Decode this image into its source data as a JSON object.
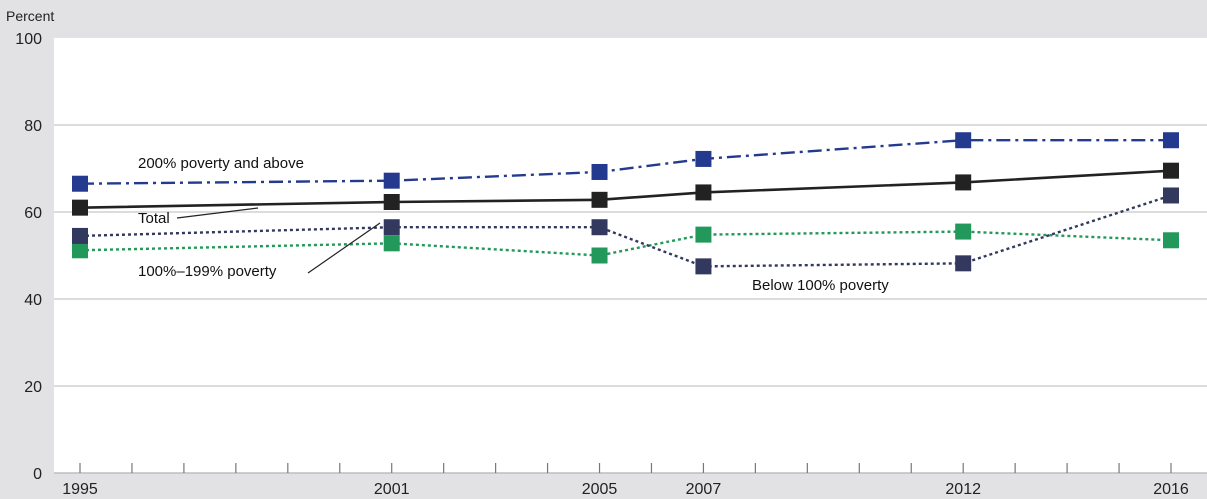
{
  "chart_data": {
    "type": "line",
    "title": "",
    "xlabel": "",
    "ylabel": "Percent",
    "ylim": [
      0,
      100
    ],
    "xlim": [
      1995,
      2016
    ],
    "y_ticks": [
      0,
      20,
      40,
      60,
      80,
      100
    ],
    "x_tick_labels": [
      1995,
      2001,
      2005,
      2007,
      2012,
      2016
    ],
    "x_minor_ticks": [
      1996,
      1997,
      1998,
      1999,
      2000,
      2002,
      2003,
      2004,
      2006,
      2008,
      2009,
      2010,
      2011,
      2013,
      2014,
      2015
    ],
    "grid": "horizontal",
    "x": [
      1995,
      2001,
      2005,
      2007,
      2012,
      2016
    ],
    "series": [
      {
        "name": "200% poverty and above",
        "values": [
          66.5,
          67.2,
          69.2,
          72.2,
          76.5,
          76.5
        ],
        "color": "#243a8f",
        "dash": "dash-dot"
      },
      {
        "name": "Total",
        "values": [
          61.0,
          62.3,
          62.8,
          64.5,
          66.8,
          69.5
        ],
        "color": "#222222",
        "dash": "solid"
      },
      {
        "name": "100%–199% poverty",
        "values": [
          51.2,
          52.8,
          50.0,
          54.8,
          55.5,
          53.5
        ],
        "color": "#22995a",
        "dash": "dotted"
      },
      {
        "name": "Below 100% poverty",
        "values": [
          54.5,
          56.5,
          56.5,
          47.5,
          48.2,
          63.8
        ],
        "color": "#33395e",
        "dash": "dotted"
      }
    ]
  }
}
